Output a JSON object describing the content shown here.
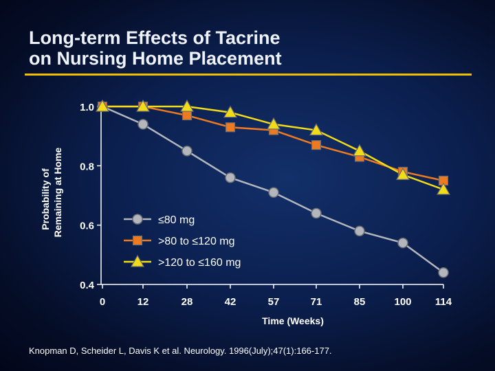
{
  "slide": {
    "title_line1": "Long-term Effects of Tacrine",
    "title_line2": "on Nursing Home Placement",
    "citation": "Knopman D, Scheider L, Davis K et al. Neurology. 1996(July);47(1):166-177."
  },
  "colors": {
    "accent_rule": "#f0c000",
    "axis": "#ffffff",
    "series_low": "#b3b6bd",
    "series_mid": "#ee7a1f",
    "series_high": "#f2dc1a"
  },
  "chart_data": {
    "type": "line",
    "title": "",
    "xlabel": "Time (Weeks)",
    "ylabel_line1": "Probability of",
    "ylabel_line2": "Remaining at Home",
    "x": [
      0,
      12,
      28,
      42,
      57,
      71,
      85,
      100,
      114
    ],
    "x_ticks": [
      "0",
      "12",
      "28",
      "42",
      "57",
      "71",
      "85",
      "100",
      "114"
    ],
    "y_ticks": [
      "1.0",
      "0.8",
      "0.6",
      "0.4"
    ],
    "y_tick_values": [
      1.0,
      0.8,
      0.6,
      0.4
    ],
    "ylim": [
      0.4,
      1.0
    ],
    "legend_position": "center",
    "series": [
      {
        "name": "≤80 mg",
        "marker": "circle",
        "color": "#b3b6bd",
        "values": [
          1.0,
          0.94,
          0.85,
          0.76,
          0.71,
          0.64,
          0.58,
          0.54,
          0.44
        ]
      },
      {
        "name": ">80 to ≤120 mg",
        "marker": "square",
        "color": "#ee7a1f",
        "values": [
          1.0,
          1.0,
          0.97,
          0.93,
          0.92,
          0.87,
          0.83,
          0.78,
          0.75
        ]
      },
      {
        "name": ">120 to ≤160 mg",
        "marker": "triangle",
        "color": "#f2dc1a",
        "values": [
          1.0,
          1.0,
          1.0,
          0.98,
          0.94,
          0.92,
          0.85,
          0.77,
          0.72
        ]
      }
    ]
  }
}
